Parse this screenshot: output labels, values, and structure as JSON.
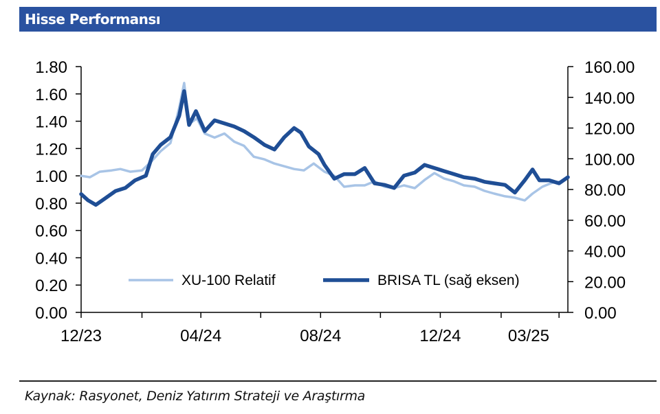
{
  "header": {
    "title": "Hisse Performansı"
  },
  "footer": {
    "source": "Kaynak: Rasyonet, Deniz Yatırım Strateji ve Araştırma"
  },
  "colors": {
    "header_bg": "#2a52a0",
    "xu100": "#a8c4e6",
    "brisa": "#1f4e95"
  },
  "chart_data": {
    "type": "line",
    "title": "Hisse Performansı",
    "grid": false,
    "legend_position": "bottom-center",
    "x_ticks": [
      "12/23",
      "04/24",
      "08/24",
      "12/24",
      "03/25"
    ],
    "x_tick_dates": [
      "2023-12-01",
      "2024-04-01",
      "2024-08-01",
      "2024-12-01",
      "2025-03-01"
    ],
    "x_range": [
      "2023-12-01",
      "2025-04-10"
    ],
    "y_left": {
      "range": [
        0,
        1.8
      ],
      "ticks": [
        "0.00",
        "0.20",
        "0.40",
        "0.60",
        "0.80",
        "1.00",
        "1.20",
        "1.40",
        "1.60",
        "1.80"
      ]
    },
    "y_right": {
      "range": [
        0,
        160
      ],
      "ticks": [
        "0.00",
        "20.00",
        "40.00",
        "60.00",
        "80.00",
        "100.00",
        "120.00",
        "140.00",
        "160.00"
      ]
    },
    "series": [
      {
        "name": "XU-100 Relatif",
        "axis": "left",
        "color": "#a8c4e6",
        "points": [
          [
            "2023-12-01",
            1.0
          ],
          [
            "2023-12-10",
            0.99
          ],
          [
            "2023-12-20",
            1.03
          ],
          [
            "2024-01-01",
            1.04
          ],
          [
            "2024-01-10",
            1.05
          ],
          [
            "2024-01-20",
            1.03
          ],
          [
            "2024-02-01",
            1.04
          ],
          [
            "2024-02-10",
            1.1
          ],
          [
            "2024-02-20",
            1.18
          ],
          [
            "2024-03-01",
            1.24
          ],
          [
            "2024-03-10",
            1.5
          ],
          [
            "2024-03-15",
            1.68
          ],
          [
            "2024-03-20",
            1.38
          ],
          [
            "2024-03-28",
            1.42
          ],
          [
            "2024-04-05",
            1.31
          ],
          [
            "2024-04-15",
            1.28
          ],
          [
            "2024-04-25",
            1.31
          ],
          [
            "2024-05-05",
            1.25
          ],
          [
            "2024-05-15",
            1.22
          ],
          [
            "2024-05-25",
            1.14
          ],
          [
            "2024-06-05",
            1.12
          ],
          [
            "2024-06-15",
            1.09
          ],
          [
            "2024-06-25",
            1.07
          ],
          [
            "2024-07-05",
            1.05
          ],
          [
            "2024-07-15",
            1.04
          ],
          [
            "2024-07-25",
            1.09
          ],
          [
            "2024-08-05",
            1.03
          ],
          [
            "2024-08-15",
            1.0
          ],
          [
            "2024-08-25",
            0.92
          ],
          [
            "2024-09-05",
            0.93
          ],
          [
            "2024-09-15",
            0.93
          ],
          [
            "2024-09-25",
            0.96
          ],
          [
            "2024-10-05",
            0.92
          ],
          [
            "2024-10-15",
            0.91
          ],
          [
            "2024-10-25",
            0.93
          ],
          [
            "2024-11-05",
            0.91
          ],
          [
            "2024-11-15",
            0.97
          ],
          [
            "2024-11-25",
            1.02
          ],
          [
            "2024-12-05",
            0.98
          ],
          [
            "2024-12-15",
            0.96
          ],
          [
            "2024-12-25",
            0.93
          ],
          [
            "2025-01-05",
            0.92
          ],
          [
            "2025-01-15",
            0.89
          ],
          [
            "2025-01-25",
            0.87
          ],
          [
            "2025-02-05",
            0.85
          ],
          [
            "2025-02-15",
            0.84
          ],
          [
            "2025-02-25",
            0.82
          ],
          [
            "2025-03-05",
            0.87
          ],
          [
            "2025-03-15",
            0.92
          ],
          [
            "2025-03-25",
            0.95
          ],
          [
            "2025-04-05",
            0.96
          ]
        ]
      },
      {
        "name": "BRISA TL (sağ eksen)",
        "axis": "right",
        "color": "#1f4e95",
        "points": [
          [
            "2023-12-01",
            77
          ],
          [
            "2023-12-08",
            73
          ],
          [
            "2023-12-16",
            70
          ],
          [
            "2023-12-25",
            74
          ],
          [
            "2024-01-05",
            79
          ],
          [
            "2024-01-15",
            81
          ],
          [
            "2024-01-25",
            86
          ],
          [
            "2024-02-05",
            89
          ],
          [
            "2024-02-12",
            103
          ],
          [
            "2024-02-20",
            109
          ],
          [
            "2024-03-01",
            114
          ],
          [
            "2024-03-10",
            128
          ],
          [
            "2024-03-15",
            144
          ],
          [
            "2024-03-20",
            122
          ],
          [
            "2024-03-27",
            131
          ],
          [
            "2024-04-05",
            118
          ],
          [
            "2024-04-15",
            125
          ],
          [
            "2024-04-25",
            123
          ],
          [
            "2024-05-05",
            121
          ],
          [
            "2024-05-15",
            118
          ],
          [
            "2024-05-25",
            114
          ],
          [
            "2024-06-05",
            109
          ],
          [
            "2024-06-15",
            106
          ],
          [
            "2024-06-25",
            114
          ],
          [
            "2024-07-05",
            120
          ],
          [
            "2024-07-12",
            117
          ],
          [
            "2024-07-20",
            108
          ],
          [
            "2024-07-30",
            103
          ],
          [
            "2024-08-05",
            96
          ],
          [
            "2024-08-15",
            87
          ],
          [
            "2024-08-25",
            90
          ],
          [
            "2024-09-05",
            90
          ],
          [
            "2024-09-15",
            94
          ],
          [
            "2024-09-25",
            84
          ],
          [
            "2024-10-05",
            83
          ],
          [
            "2024-10-15",
            81
          ],
          [
            "2024-10-25",
            89
          ],
          [
            "2024-11-05",
            91
          ],
          [
            "2024-11-15",
            96
          ],
          [
            "2024-11-25",
            94
          ],
          [
            "2024-12-05",
            92
          ],
          [
            "2024-12-15",
            90
          ],
          [
            "2024-12-25",
            88
          ],
          [
            "2025-01-05",
            87
          ],
          [
            "2025-01-15",
            85
          ],
          [
            "2025-01-25",
            84
          ],
          [
            "2025-02-05",
            83
          ],
          [
            "2025-02-15",
            78
          ],
          [
            "2025-02-25",
            86
          ],
          [
            "2025-03-05",
            93
          ],
          [
            "2025-03-12",
            86
          ],
          [
            "2025-03-22",
            86
          ],
          [
            "2025-04-01",
            84
          ],
          [
            "2025-04-10",
            88
          ]
        ]
      }
    ]
  }
}
